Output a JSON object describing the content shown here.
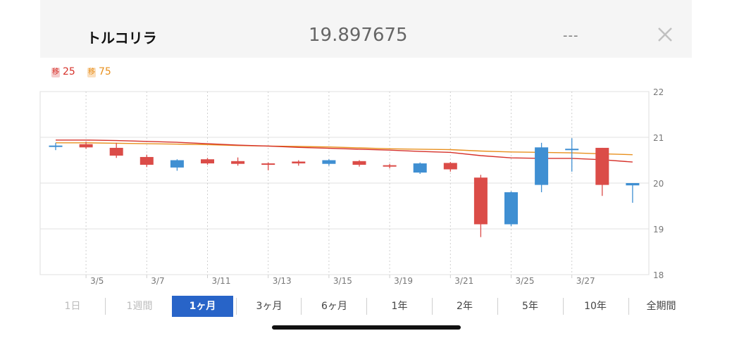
{
  "header": {
    "title": "トルコリラ",
    "price": "19.897675",
    "change": "---",
    "close_icon": "close-icon"
  },
  "legend": [
    {
      "tag": "移",
      "label": "25",
      "color": "#d6312a"
    },
    {
      "tag": "移",
      "label": "75",
      "color": "#e8901e"
    }
  ],
  "periods": [
    {
      "label": "1日",
      "state": "disabled"
    },
    {
      "label": "1週間",
      "state": "disabled"
    },
    {
      "label": "1ヶ月",
      "state": "active"
    },
    {
      "label": "3ヶ月",
      "state": "normal"
    },
    {
      "label": "6ヶ月",
      "state": "normal"
    },
    {
      "label": "1年",
      "state": "normal"
    },
    {
      "label": "2年",
      "state": "normal"
    },
    {
      "label": "5年",
      "state": "normal"
    },
    {
      "label": "10年",
      "state": "normal"
    },
    {
      "label": "全期間",
      "state": "normal"
    }
  ],
  "colors": {
    "up": "#3f8fd2",
    "down": "#db4c48",
    "ma25": "#d6312a",
    "ma75": "#e8901e"
  },
  "chart_data": {
    "type": "candlestick",
    "y_axis_side": "right",
    "ylim": [
      18,
      22
    ],
    "yticks": [
      18,
      19,
      20,
      21,
      22
    ],
    "xtick_labels": [
      {
        "index": 1,
        "label": "3/5"
      },
      {
        "index": 3,
        "label": "3/7"
      },
      {
        "index": 5,
        "label": "3/11"
      },
      {
        "index": 7,
        "label": "3/13"
      },
      {
        "index": 9,
        "label": "3/15"
      },
      {
        "index": 11,
        "label": "3/19"
      },
      {
        "index": 13,
        "label": "3/21"
      },
      {
        "index": 15,
        "label": "3/25"
      },
      {
        "index": 17,
        "label": "3/27"
      }
    ],
    "grid": true,
    "candles": [
      {
        "o": 20.82,
        "h": 20.88,
        "l": 20.72,
        "c": 20.8,
        "dir": "up"
      },
      {
        "o": 20.85,
        "h": 20.9,
        "l": 20.75,
        "c": 20.78,
        "dir": "down"
      },
      {
        "o": 20.77,
        "h": 20.88,
        "l": 20.55,
        "c": 20.6,
        "dir": "down"
      },
      {
        "o": 20.57,
        "h": 20.62,
        "l": 20.35,
        "c": 20.4,
        "dir": "down"
      },
      {
        "o": 20.34,
        "h": 20.52,
        "l": 20.27,
        "c": 20.5,
        "dir": "up"
      },
      {
        "o": 20.52,
        "h": 20.55,
        "l": 20.4,
        "c": 20.43,
        "dir": "down"
      },
      {
        "o": 20.48,
        "h": 20.56,
        "l": 20.38,
        "c": 20.42,
        "dir": "down"
      },
      {
        "o": 20.43,
        "h": 20.45,
        "l": 20.28,
        "c": 20.41,
        "dir": "down"
      },
      {
        "o": 20.43,
        "h": 20.5,
        "l": 20.38,
        "c": 20.47,
        "dir": "down"
      },
      {
        "o": 20.42,
        "h": 20.52,
        "l": 20.38,
        "c": 20.5,
        "dir": "up"
      },
      {
        "o": 20.48,
        "h": 20.5,
        "l": 20.36,
        "c": 20.4,
        "dir": "down"
      },
      {
        "o": 20.39,
        "h": 20.42,
        "l": 20.32,
        "c": 20.36,
        "dir": "down"
      },
      {
        "o": 20.23,
        "h": 20.45,
        "l": 20.2,
        "c": 20.43,
        "dir": "up"
      },
      {
        "o": 20.44,
        "h": 20.46,
        "l": 20.25,
        "c": 20.3,
        "dir": "down"
      },
      {
        "o": 20.12,
        "h": 20.18,
        "l": 18.82,
        "c": 19.1,
        "dir": "down"
      },
      {
        "o": 19.1,
        "h": 19.82,
        "l": 19.06,
        "c": 19.8,
        "dir": "up"
      },
      {
        "o": 19.96,
        "h": 20.88,
        "l": 19.8,
        "c": 20.78,
        "dir": "up"
      },
      {
        "o": 20.72,
        "h": 20.98,
        "l": 20.25,
        "c": 20.75,
        "dir": "up"
      },
      {
        "o": 20.77,
        "h": 20.77,
        "l": 19.72,
        "c": 19.96,
        "dir": "down"
      },
      {
        "o": 19.95,
        "h": 20.0,
        "l": 19.57,
        "c": 20.0,
        "dir": "up"
      }
    ],
    "ma25": [
      20.94,
      20.94,
      20.93,
      20.91,
      20.89,
      20.86,
      20.83,
      20.81,
      20.78,
      20.76,
      20.74,
      20.72,
      20.69,
      20.67,
      20.6,
      20.55,
      20.54,
      20.54,
      20.51,
      20.46
    ],
    "ma75": [
      20.88,
      20.88,
      20.87,
      20.86,
      20.85,
      20.84,
      20.82,
      20.81,
      20.8,
      20.79,
      20.77,
      20.75,
      20.74,
      20.73,
      20.7,
      20.68,
      20.67,
      20.66,
      20.64,
      20.62
    ]
  }
}
